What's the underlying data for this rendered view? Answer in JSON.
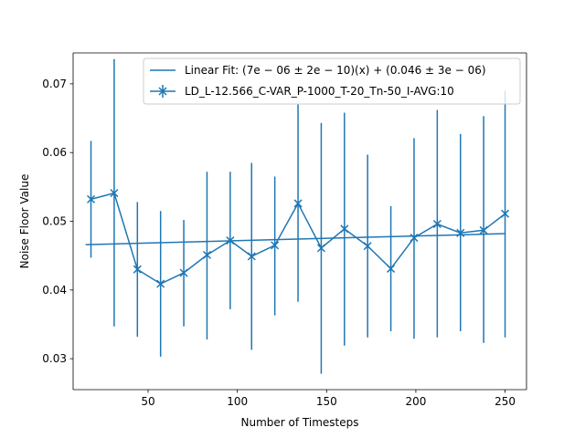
{
  "chart_data": {
    "type": "line",
    "xlabel": "Number of Timesteps",
    "ylabel": "Noise Floor Value",
    "xlim": [
      8,
      262
    ],
    "ylim": [
      0.0255,
      0.0745
    ],
    "xticks": [
      50,
      100,
      150,
      200,
      250
    ],
    "yticks": [
      0.03,
      0.04,
      0.05,
      0.06,
      0.07
    ],
    "ytick_labels": [
      "0.03",
      "0.04",
      "0.05",
      "0.06",
      "0.07"
    ],
    "legend_position": "top-right",
    "color": "#1f77b4",
    "fit": {
      "name": "Linear Fit: (7e − 06 ± 2e − 10)(x) + (0.046 ± 3e − 06)",
      "x": [
        15,
        250
      ],
      "y": [
        0.0466,
        0.0482
      ]
    },
    "series": [
      {
        "name": "LD_L-12.566_C-VAR_P-1000_T-20_Tn-50_I-AVG:10",
        "marker": "x",
        "x": [
          18,
          31,
          44,
          57,
          70,
          83,
          96,
          108,
          121,
          134,
          147,
          160,
          173,
          186,
          199,
          212,
          225,
          238,
          250
        ],
        "y": [
          0.0532,
          0.0541,
          0.043,
          0.0409,
          0.0425,
          0.0451,
          0.0472,
          0.0449,
          0.0465,
          0.0526,
          0.0461,
          0.0489,
          0.0464,
          0.0431,
          0.0476,
          0.0496,
          0.0483,
          0.0487,
          0.0511
        ],
        "err_low": [
          0.0447,
          0.0347,
          0.0332,
          0.0303,
          0.0347,
          0.0328,
          0.0372,
          0.0313,
          0.0363,
          0.0383,
          0.0278,
          0.0319,
          0.0331,
          0.034,
          0.0329,
          0.0331,
          0.034,
          0.0323,
          0.0331
        ],
        "err_high": [
          0.0617,
          0.0736,
          0.0528,
          0.0515,
          0.0502,
          0.0572,
          0.0572,
          0.0585,
          0.0565,
          0.067,
          0.0643,
          0.0658,
          0.0597,
          0.0522,
          0.0621,
          0.0662,
          0.0627,
          0.0653,
          0.069
        ]
      }
    ]
  }
}
